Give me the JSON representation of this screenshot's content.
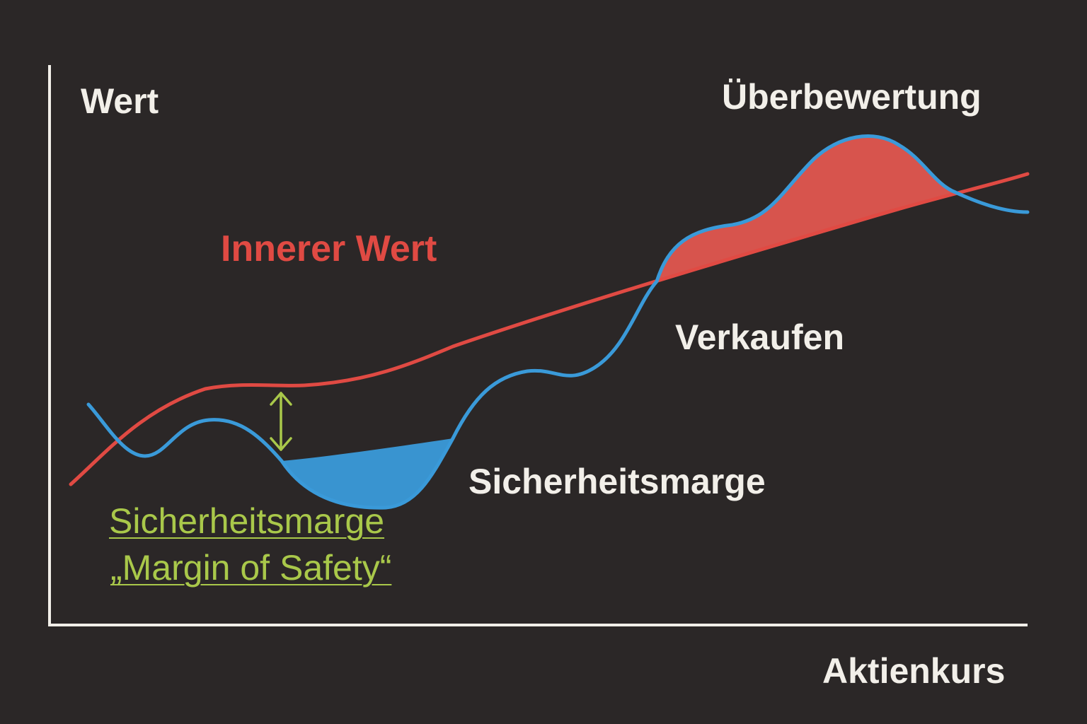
{
  "labels": {
    "y_axis": "Wert",
    "x_axis": "Aktienkurs",
    "overvaluation": "Überbewertung",
    "intrinsic_value": "Innerer Wert",
    "sell": "Verkaufen",
    "margin_of_safety": "Sicherheitsmarge",
    "annotation_line1": "Sicherheitsmarge",
    "annotation_line2": "„Margin of Safety“"
  },
  "colors": {
    "background": "#2b2727",
    "axes": "#f2efe9",
    "intrinsic_value_line": "#e04a43",
    "price_curve": "#3a9ad9",
    "overvaluation_fill": "#e0564f",
    "margin_fill": "#3a9ad9",
    "annotation": "#a9c84a"
  },
  "icons": {
    "margin_arrow": "double-headed-vertical-arrow"
  }
}
